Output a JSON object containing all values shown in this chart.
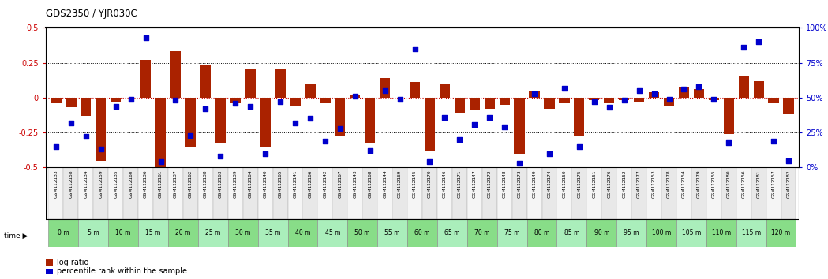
{
  "title": "GDS2350 / YJR030C",
  "categories": [
    "GSM112133",
    "GSM112158",
    "GSM112134",
    "GSM112159",
    "GSM112135",
    "GSM112160",
    "GSM112136",
    "GSM112161",
    "GSM112137",
    "GSM112162",
    "GSM112138",
    "GSM112163",
    "GSM112139",
    "GSM112164",
    "GSM112140",
    "GSM112165",
    "GSM112141",
    "GSM112166",
    "GSM112142",
    "GSM112167",
    "GSM112143",
    "GSM112168",
    "GSM112144",
    "GSM112169",
    "GSM112145",
    "GSM112170",
    "GSM112146",
    "GSM112171",
    "GSM112147",
    "GSM112172",
    "GSM112148",
    "GSM112173",
    "GSM112149",
    "GSM112174",
    "GSM112150",
    "GSM112175",
    "GSM112151",
    "GSM112176",
    "GSM112152",
    "GSM112177",
    "GSM112153",
    "GSM112178",
    "GSM112154",
    "GSM112179",
    "GSM112155",
    "GSM112180",
    "GSM112156",
    "GSM112181",
    "GSM112157",
    "GSM112182"
  ],
  "time_labels": [
    "0 m",
    "5 m",
    "10 m",
    "15 m",
    "20 m",
    "25 m",
    "30 m",
    "35 m",
    "40 m",
    "45 m",
    "50 m",
    "55 m",
    "60 m",
    "65 m",
    "70 m",
    "75 m",
    "80 m",
    "85 m",
    "90 m",
    "95 m",
    "100 m",
    "105 m",
    "110 m",
    "115 m",
    "120 m"
  ],
  "log_ratio": [
    -0.04,
    -0.07,
    -0.13,
    -0.45,
    -0.03,
    0.0,
    0.27,
    -0.5,
    0.33,
    -0.35,
    0.23,
    -0.33,
    -0.04,
    0.2,
    -0.35,
    0.2,
    -0.06,
    0.1,
    -0.04,
    -0.28,
    0.02,
    -0.32,
    0.14,
    0.0,
    0.11,
    -0.38,
    0.1,
    -0.11,
    -0.09,
    -0.08,
    -0.05,
    -0.4,
    0.05,
    -0.08,
    -0.04,
    -0.27,
    -0.02,
    -0.04,
    -0.02,
    -0.03,
    0.04,
    -0.06,
    0.08,
    0.06,
    -0.02,
    -0.26,
    0.16,
    0.12,
    -0.04,
    -0.12
  ],
  "percentile": [
    15,
    32,
    22,
    13,
    44,
    49,
    93,
    4,
    48,
    23,
    42,
    8,
    46,
    44,
    10,
    47,
    32,
    35,
    19,
    28,
    51,
    12,
    55,
    49,
    85,
    4,
    36,
    20,
    31,
    36,
    29,
    3,
    53,
    10,
    57,
    15,
    47,
    43,
    48,
    55,
    53,
    49,
    56,
    58,
    49,
    18,
    86,
    90,
    19,
    5
  ],
  "ylim_left": [
    -0.5,
    0.5
  ],
  "ylim_right": [
    0,
    100
  ],
  "bar_color": "#AA2200",
  "dot_color": "#0000CC",
  "zero_line_color": "#CC0000",
  "bg_color": "#FFFFFF",
  "cat_bg_odd": "#E8E8E8",
  "cat_bg_even": "#F5F5F5",
  "time_row_color": "#77DD77",
  "time_row_color_alt": "#AAEEBB"
}
